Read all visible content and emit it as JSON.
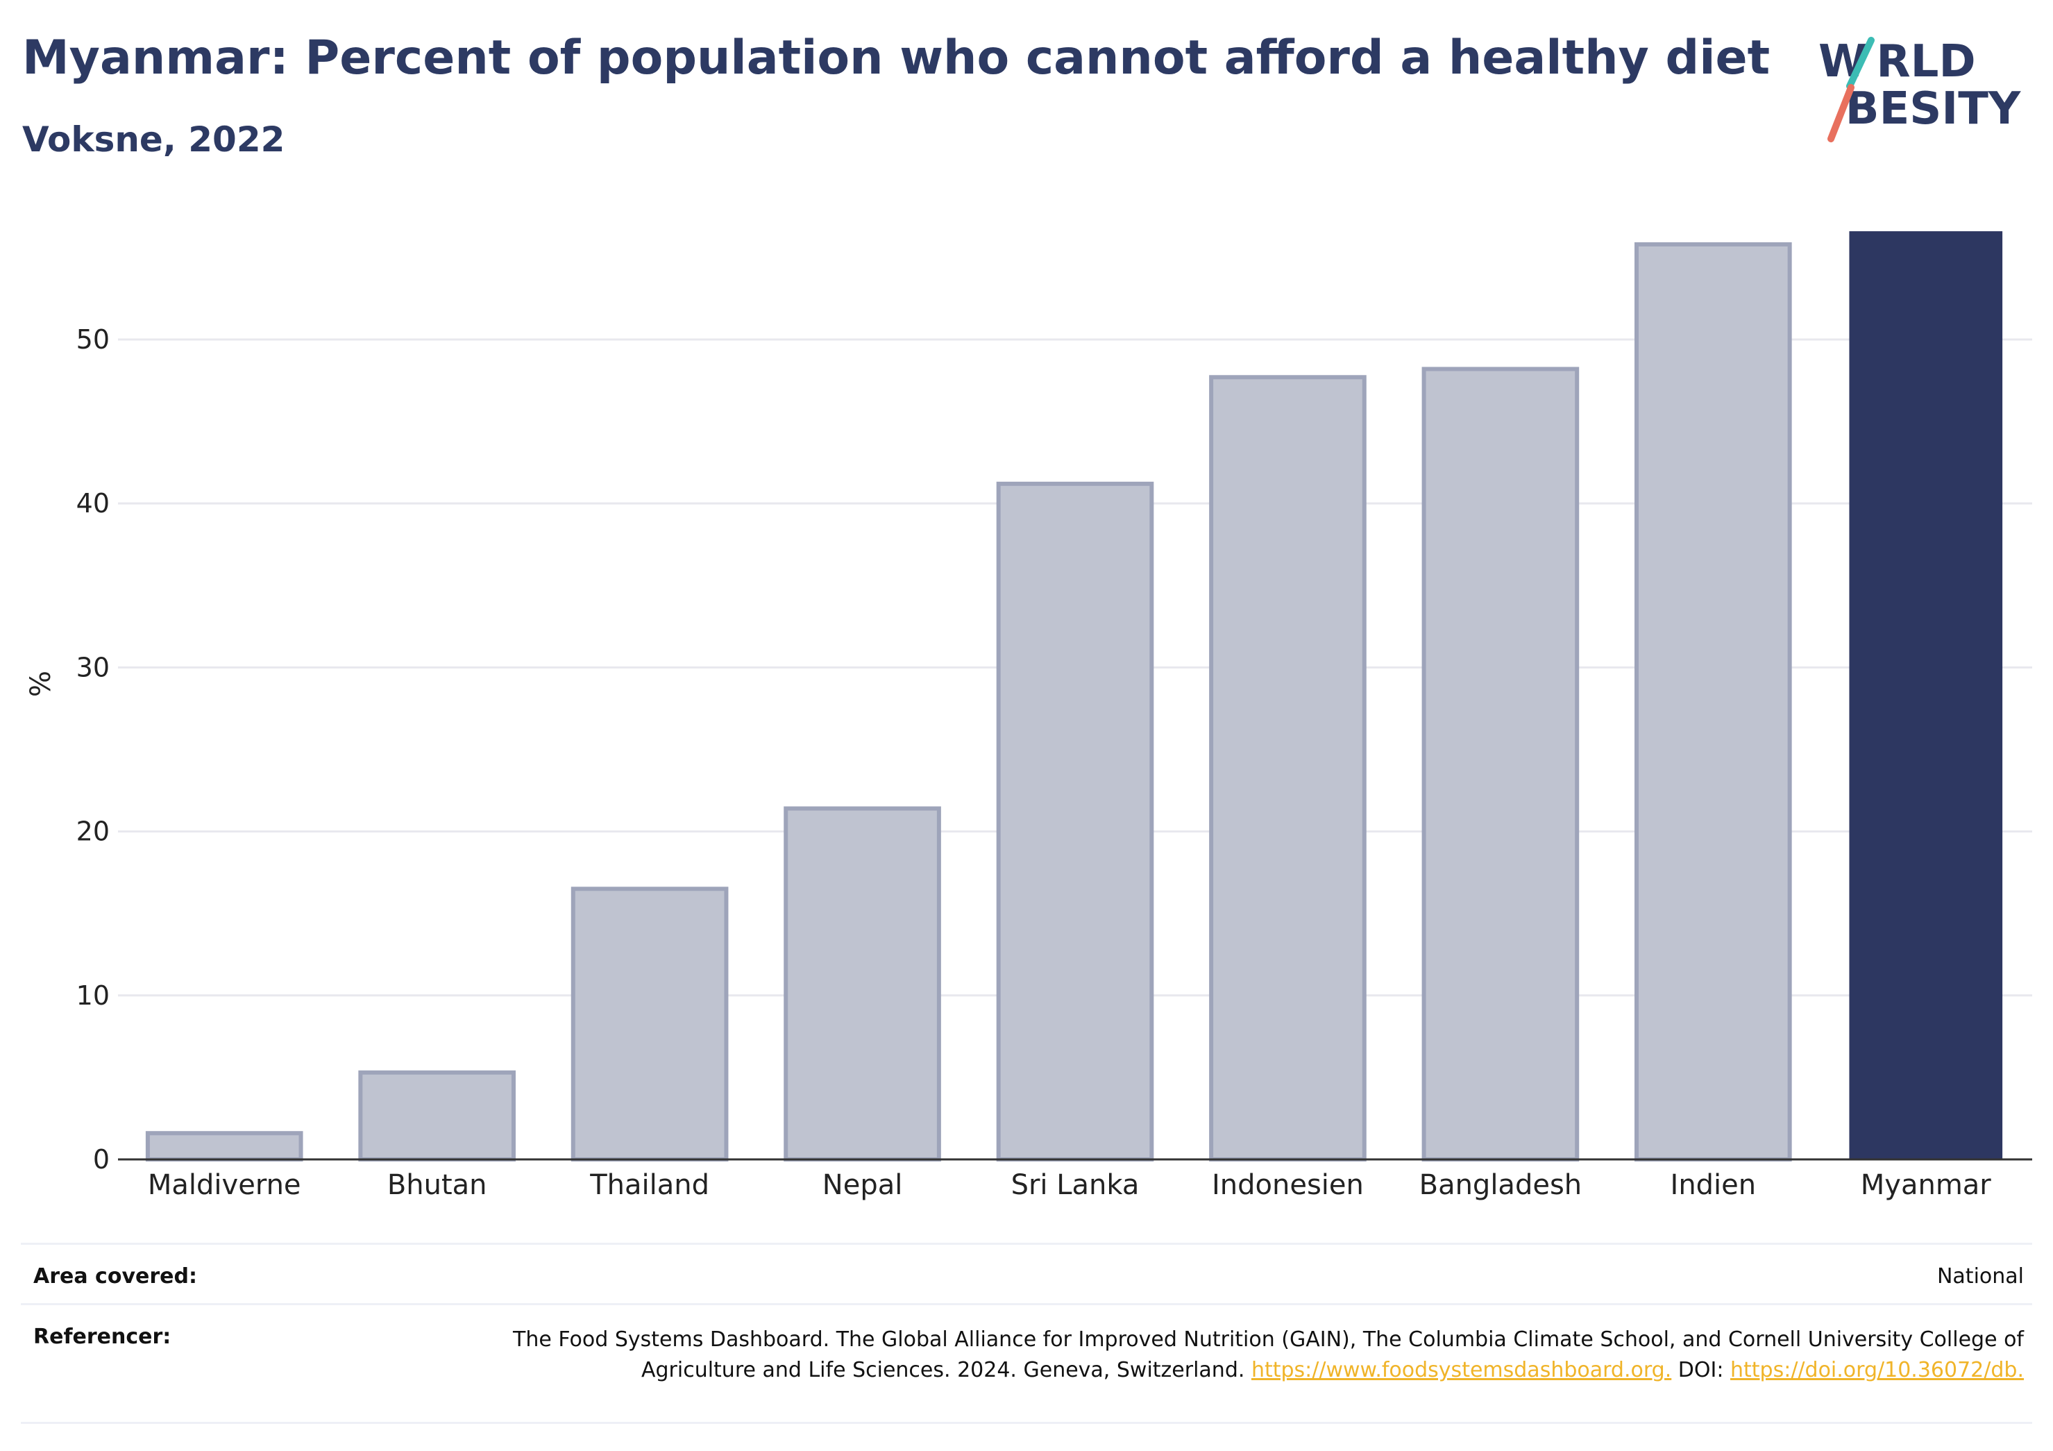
{
  "title": "Myanmar: Percent of population who cannot afford a healthy diet",
  "subtitle": "Voksne, 2022",
  "logo": {
    "line1": "W RLD",
    "line2": " BESITY"
  },
  "chart_data": {
    "type": "bar",
    "categories": [
      "Maldiverne",
      "Bhutan",
      "Thailand",
      "Nepal",
      "Sri Lanka",
      "Indonesien",
      "Bangladesh",
      "Indien",
      "Myanmar"
    ],
    "values": [
      1.6,
      5.3,
      16.5,
      21.4,
      41.2,
      47.7,
      48.2,
      55.8,
      56.6
    ],
    "highlight": "Myanmar",
    "xlabel": "",
    "ylabel": "%",
    "ylim": [
      0,
      58
    ],
    "yticks": [
      0,
      10,
      20,
      30,
      40,
      50
    ],
    "grid": true,
    "colors": {
      "highlight": "#2d3761",
      "other": "#bfc3d0",
      "other_border": "#9ea4ba",
      "axis": "#333333",
      "grid": "#e8e8ee",
      "text": "#222222"
    }
  },
  "footer": {
    "area_label": "Area covered:",
    "area_value": "National",
    "ref_label": "Referencer:",
    "ref_text": "The Food Systems Dashboard. The Global Alliance for Improved Nutrition (GAIN), The Columbia Climate School, and Cornell University College of Agriculture and Life Sciences. 2024. Geneva, Switzerland. ",
    "ref_link1": "https://www.foodsystemsdashboard.org.",
    "ref_mid": " DOI: ",
    "ref_link2": "https://doi.org/10.36072/db."
  }
}
